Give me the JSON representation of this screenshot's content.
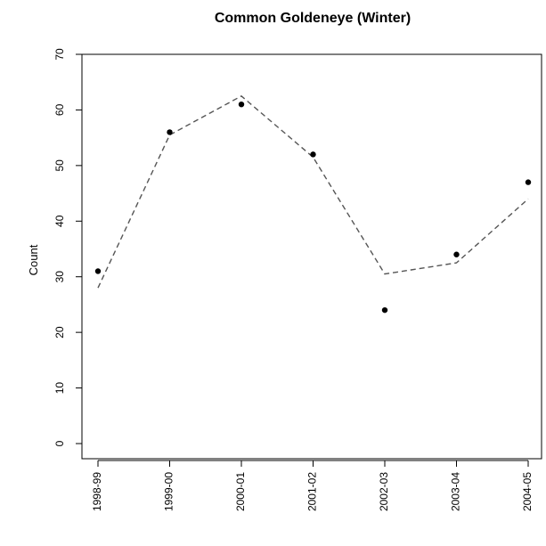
{
  "chart_data": {
    "type": "scatter",
    "title": "Common Goldeneye (Winter)",
    "xlabel": "",
    "ylabel": "Count",
    "categories": [
      "1998-99",
      "1999-00",
      "2000-01",
      "2001-02",
      "2002-03",
      "2003-04",
      "2004-05"
    ],
    "series": [
      {
        "style": "points",
        "marker": "filled-circle",
        "color": "#000000",
        "values": [
          31,
          56,
          61,
          52,
          24,
          34,
          47
        ]
      },
      {
        "style": "dashed-line",
        "color": "#555555",
        "values": [
          28,
          55.5,
          62.5,
          51.5,
          30.5,
          32.5,
          44
        ]
      }
    ],
    "ylim": [
      0,
      70
    ],
    "yticks": [
      0,
      10,
      20,
      30,
      40,
      50,
      60,
      70
    ],
    "grid": false,
    "legend": "none"
  }
}
